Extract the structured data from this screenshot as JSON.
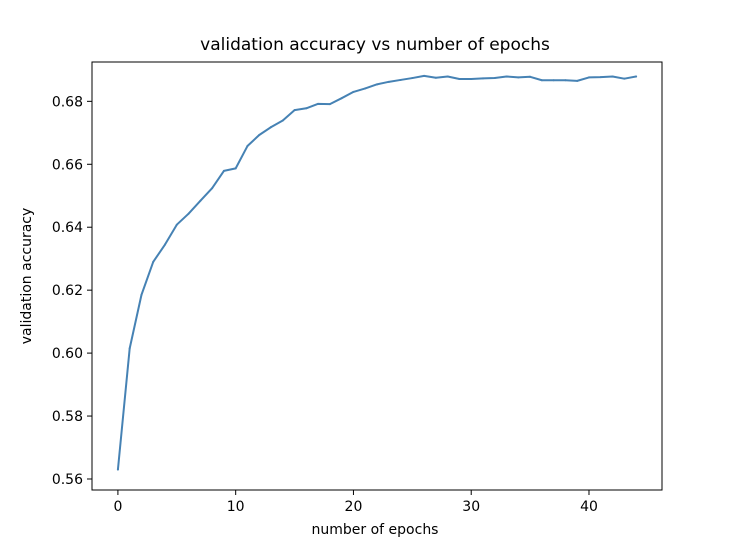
{
  "chart_data": {
    "type": "line",
    "title": "validation accuracy vs number of epochs",
    "xlabel": "number of epochs",
    "ylabel": "validation accuracy",
    "xlim": [
      -2.2,
      46.2
    ],
    "ylim": [
      0.5565,
      0.6925
    ],
    "grid": false,
    "x_ticks": [
      0,
      10,
      20,
      30,
      40
    ],
    "x_tick_labels": [
      "0",
      "10",
      "20",
      "30",
      "40"
    ],
    "y_ticks": [
      0.56,
      0.58,
      0.6,
      0.62,
      0.64,
      0.66,
      0.68
    ],
    "y_tick_labels": [
      "0.56",
      "0.58",
      "0.60",
      "0.62",
      "0.64",
      "0.66",
      "0.68"
    ],
    "series": [
      {
        "color": "#4682b4",
        "x": [
          0,
          1,
          2,
          3,
          4,
          5,
          6,
          7,
          8,
          9,
          10,
          11,
          12,
          13,
          14,
          15,
          16,
          17,
          18,
          19,
          20,
          21,
          22,
          23,
          24,
          25,
          26,
          27,
          28,
          29,
          30,
          31,
          32,
          33,
          34,
          35,
          36,
          37,
          38,
          39,
          40,
          41,
          42,
          43,
          44
        ],
        "y": [
          0.563,
          0.6015,
          0.6185,
          0.629,
          0.6345,
          0.6408,
          0.6443,
          0.6484,
          0.6524,
          0.6579,
          0.6587,
          0.6658,
          0.6693,
          0.6718,
          0.6739,
          0.6772,
          0.6778,
          0.6792,
          0.6791,
          0.681,
          0.683,
          0.6841,
          0.6854,
          0.6862,
          0.6868,
          0.6874,
          0.6881,
          0.6875,
          0.6879,
          0.6871,
          0.6871,
          0.6873,
          0.6874,
          0.6879,
          0.6876,
          0.6878,
          0.6867,
          0.6867,
          0.6867,
          0.6865,
          0.6876,
          0.6877,
          0.6879,
          0.6872,
          0.6879
        ]
      }
    ]
  }
}
